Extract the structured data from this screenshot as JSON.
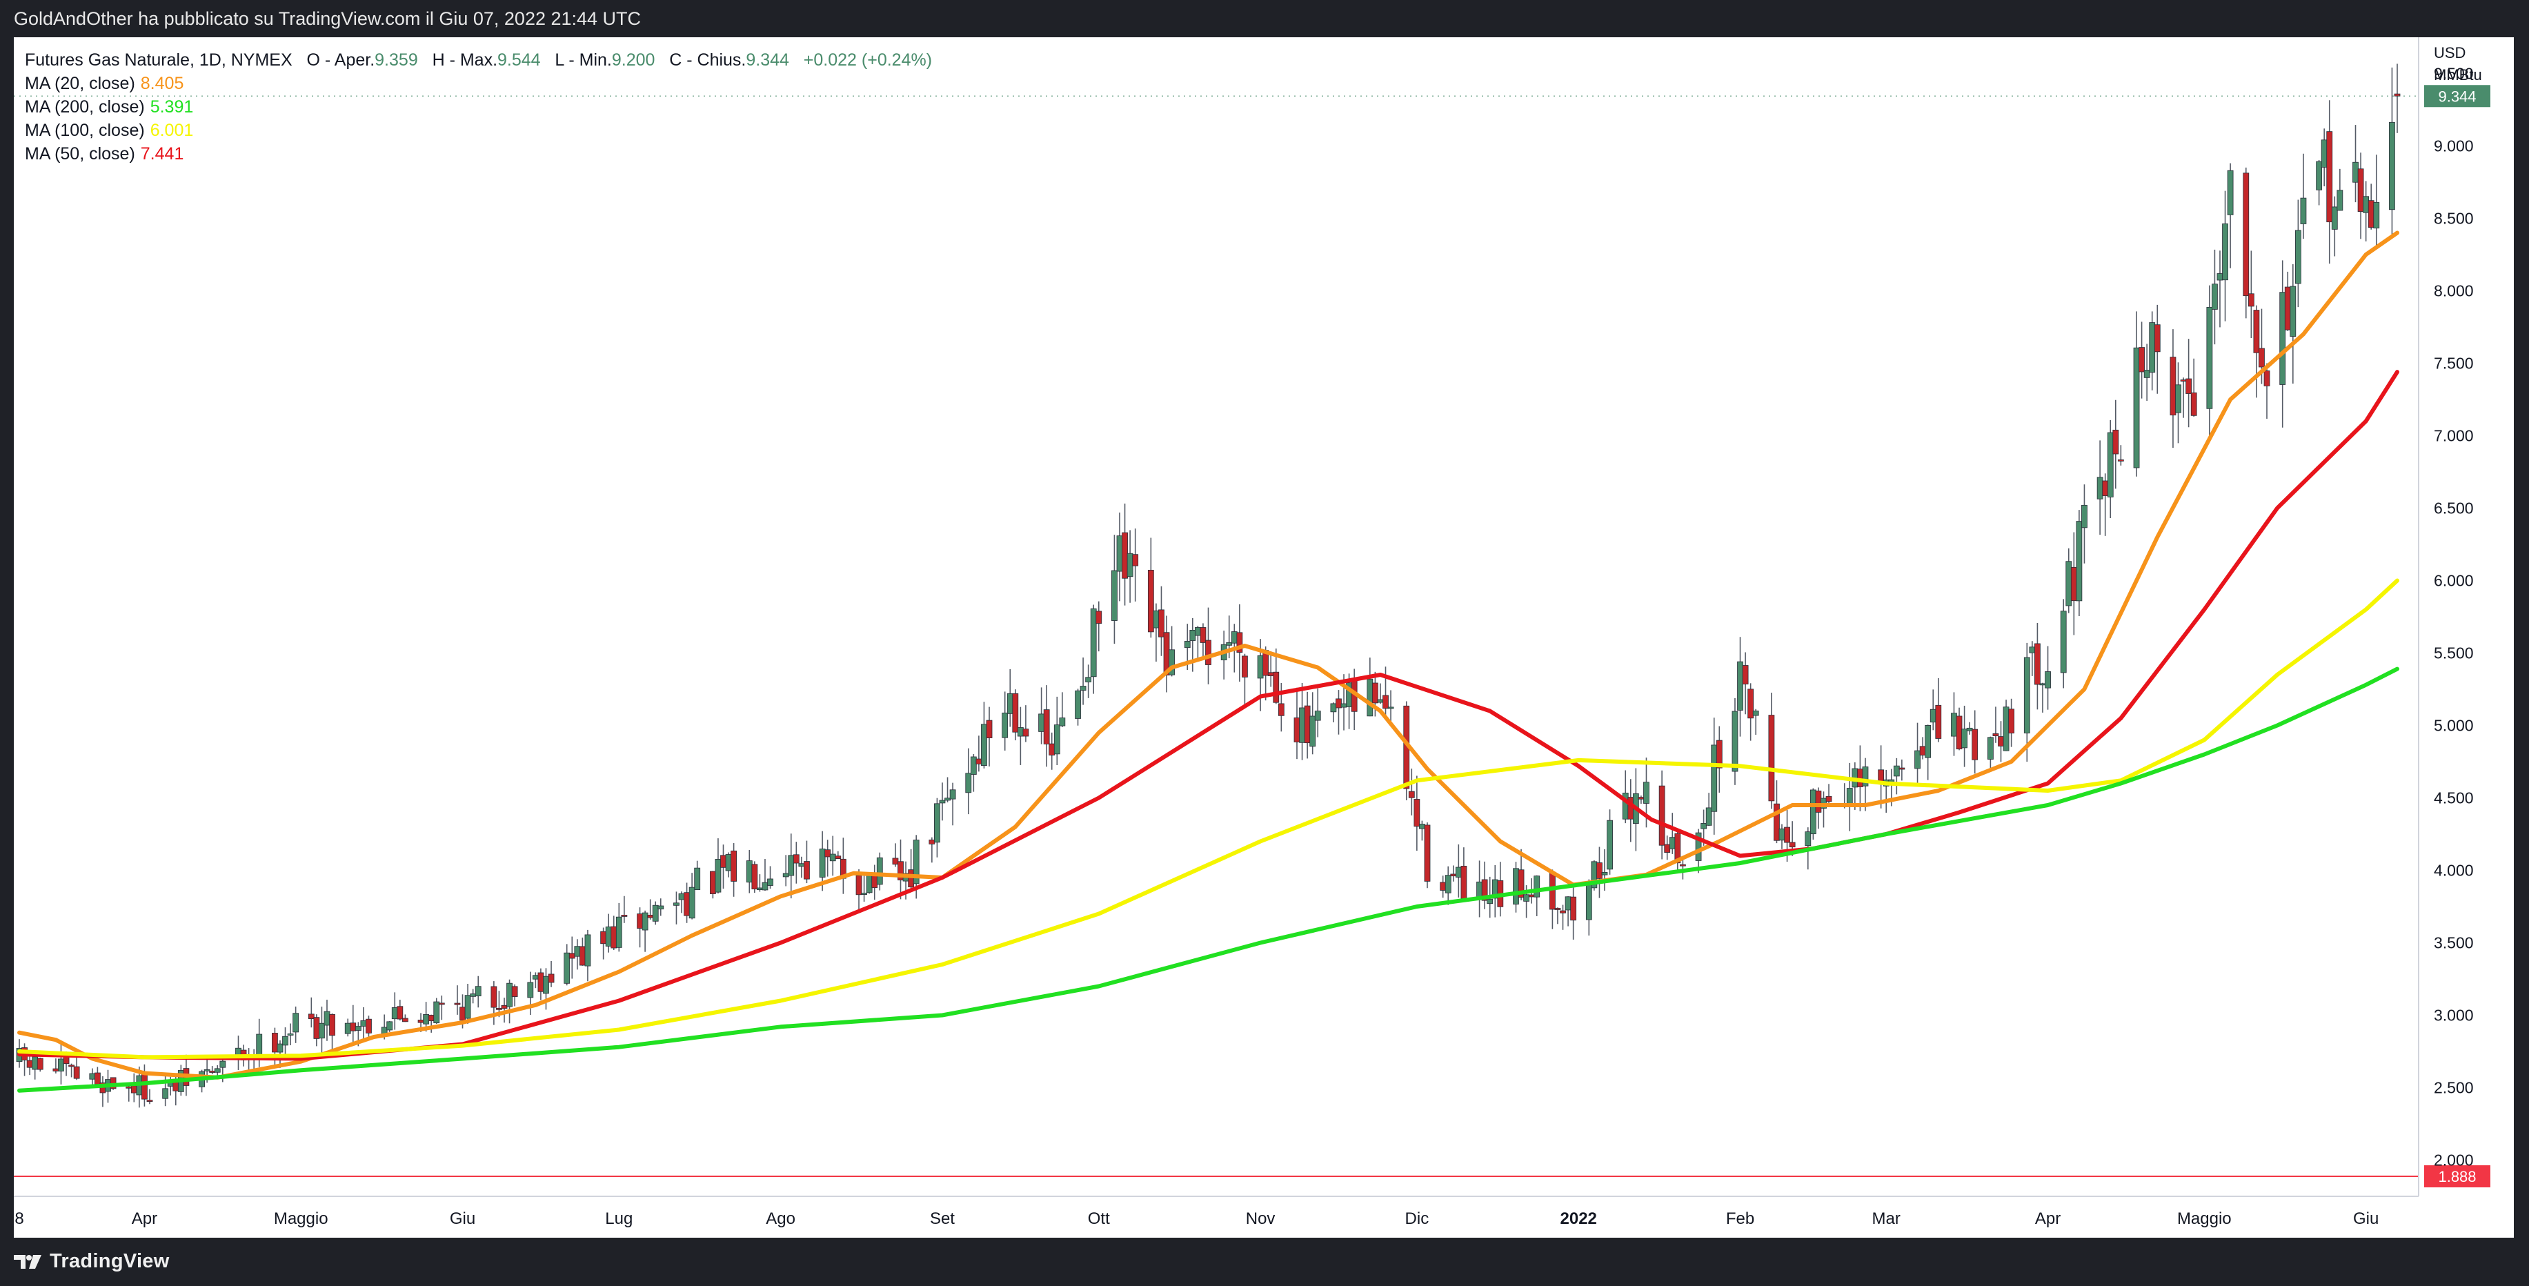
{
  "publisher_line": "GoldAndOther ha pubblicato su TradingView.com il Giu 07, 2022 21:44 UTC",
  "footer_brand": "TradingView",
  "symbol_line": {
    "name": "Futures Gas Naturale, 1D, NYMEX",
    "o_label": "O - Aper.",
    "o_value": "9.359",
    "h_label": "H - Max.",
    "h_value": "9.544",
    "l_label": "L - Min.",
    "l_value": "9.200",
    "c_label": "C - Chius.",
    "c_value": "9.344",
    "change": "+0.022 (+0.24%)"
  },
  "indicators": [
    {
      "label": "MA (20, close)",
      "value": "8.405",
      "color": "#f7931a"
    },
    {
      "label": "MA (200, close)",
      "value": "5.391",
      "color": "#21e021"
    },
    {
      "label": "MA (100, close)",
      "value": "6.001",
      "color": "#f5f500"
    },
    {
      "label": "MA (50, close)",
      "value": "7.441",
      "color": "#e8141b"
    }
  ],
  "colors": {
    "up": "#4a8c6c",
    "down": "#c4272a",
    "last_price": "#4a8c6c",
    "level_line": "#f23645"
  },
  "chart_data": {
    "type": "candlestick",
    "currency": "USD",
    "unit": "MMBtu",
    "ylim": [
      1.75,
      9.75
    ],
    "y_ticks": [
      "2.000",
      "2.500",
      "3.000",
      "3.500",
      "4.000",
      "4.500",
      "5.000",
      "5.500",
      "6.000",
      "6.500",
      "7.000",
      "7.500",
      "8.000",
      "8.500",
      "9.000",
      "9.500"
    ],
    "x_labels": [
      {
        "text": "8",
        "date": "2021-03-08"
      },
      {
        "text": "Apr",
        "date": "2021-04-01"
      },
      {
        "text": "Maggio",
        "date": "2021-05-01"
      },
      {
        "text": "Giu",
        "date": "2021-06-01"
      },
      {
        "text": "Lug",
        "date": "2021-07-01"
      },
      {
        "text": "Ago",
        "date": "2021-08-01"
      },
      {
        "text": "Set",
        "date": "2021-09-01"
      },
      {
        "text": "Ott",
        "date": "2021-10-01"
      },
      {
        "text": "Nov",
        "date": "2021-11-01"
      },
      {
        "text": "Dic",
        "date": "2021-12-01"
      },
      {
        "text": "2022",
        "date": "2022-01-01",
        "bold": true
      },
      {
        "text": "Feb",
        "date": "2022-02-01"
      },
      {
        "text": "Mar",
        "date": "2022-03-01"
      },
      {
        "text": "Apr",
        "date": "2022-04-01"
      },
      {
        "text": "Maggio",
        "date": "2022-05-01"
      },
      {
        "text": "Giu",
        "date": "2022-06-01"
      }
    ],
    "date_range": [
      "2021-03-08",
      "2022-06-07"
    ],
    "last_price": "9.344",
    "horizontal_level": {
      "value": 1.888,
      "label": "1.888"
    },
    "close_anchors": [
      [
        "2021-03-08",
        2.68
      ],
      [
        "2021-03-22",
        2.55
      ],
      [
        "2021-04-05",
        2.48
      ],
      [
        "2021-04-15",
        2.63
      ],
      [
        "2021-04-30",
        2.93
      ],
      [
        "2021-05-14",
        2.96
      ],
      [
        "2021-05-28",
        3.05
      ],
      [
        "2021-06-08",
        3.13
      ],
      [
        "2021-06-25",
        3.45
      ],
      [
        "2021-07-06",
        3.68
      ],
      [
        "2021-07-20",
        3.95
      ],
      [
        "2021-08-04",
        4.1
      ],
      [
        "2021-08-16",
        3.95
      ],
      [
        "2021-08-25",
        3.92
      ],
      [
        "2021-09-03",
        4.55
      ],
      [
        "2021-09-14",
        5.2
      ],
      [
        "2021-09-22",
        4.8
      ],
      [
        "2021-10-05",
        6.1
      ],
      [
        "2021-10-15",
        5.4
      ],
      [
        "2021-10-25",
        5.6
      ],
      [
        "2021-11-01",
        5.5
      ],
      [
        "2021-11-10",
        4.9
      ],
      [
        "2021-11-24",
        5.25
      ],
      [
        "2021-12-03",
        4.05
      ],
      [
        "2021-12-14",
        3.75
      ],
      [
        "2021-12-24",
        3.95
      ],
      [
        "2021-12-31",
        3.7
      ],
      [
        "2022-01-13",
        4.6
      ],
      [
        "2022-01-21",
        3.98
      ],
      [
        "2022-02-02",
        5.4
      ],
      [
        "2022-02-09",
        4.2
      ],
      [
        "2022-02-18",
        4.55
      ],
      [
        "2022-03-01",
        4.55
      ],
      [
        "2022-03-08",
        4.95
      ],
      [
        "2022-03-21",
        4.9
      ],
      [
        "2022-04-01",
        5.55
      ],
      [
        "2022-04-13",
        6.8
      ],
      [
        "2022-04-19",
        7.6
      ],
      [
        "2022-04-29",
        7.25
      ],
      [
        "2022-05-06",
        8.8
      ],
      [
        "2022-05-13",
        7.5
      ],
      [
        "2022-05-24",
        8.8
      ],
      [
        "2022-06-01",
        8.5
      ],
      [
        "2022-06-07",
        9.34
      ]
    ],
    "series": [
      {
        "name": "MA (20, close)",
        "color": "#f7931a",
        "points": [
          [
            "2021-03-08",
            2.88
          ],
          [
            "2021-03-15",
            2.83
          ],
          [
            "2021-03-22",
            2.7
          ],
          [
            "2021-04-01",
            2.6
          ],
          [
            "2021-04-15",
            2.57
          ],
          [
            "2021-05-01",
            2.68
          ],
          [
            "2021-05-15",
            2.85
          ],
          [
            "2021-06-01",
            2.95
          ],
          [
            "2021-06-15",
            3.07
          ],
          [
            "2021-07-01",
            3.3
          ],
          [
            "2021-07-15",
            3.55
          ],
          [
            "2021-08-01",
            3.82
          ],
          [
            "2021-08-15",
            3.98
          ],
          [
            "2021-09-01",
            3.95
          ],
          [
            "2021-09-15",
            4.3
          ],
          [
            "2021-10-01",
            4.95
          ],
          [
            "2021-10-15",
            5.4
          ],
          [
            "2021-10-29",
            5.55
          ],
          [
            "2021-11-12",
            5.4
          ],
          [
            "2021-11-24",
            5.1
          ],
          [
            "2021-12-03",
            4.7
          ],
          [
            "2021-12-17",
            4.2
          ],
          [
            "2021-12-31",
            3.9
          ],
          [
            "2022-01-14",
            3.97
          ],
          [
            "2022-01-28",
            4.2
          ],
          [
            "2022-02-11",
            4.45
          ],
          [
            "2022-02-25",
            4.45
          ],
          [
            "2022-03-11",
            4.55
          ],
          [
            "2022-03-25",
            4.75
          ],
          [
            "2022-04-08",
            5.25
          ],
          [
            "2022-04-22",
            6.3
          ],
          [
            "2022-05-06",
            7.25
          ],
          [
            "2022-05-20",
            7.7
          ],
          [
            "2022-06-01",
            8.25
          ],
          [
            "2022-06-07",
            8.4
          ]
        ]
      },
      {
        "name": "MA (50, close)",
        "color": "#e8141b",
        "points": [
          [
            "2021-03-08",
            2.73
          ],
          [
            "2021-04-01",
            2.71
          ],
          [
            "2021-05-01",
            2.7
          ],
          [
            "2021-06-01",
            2.8
          ],
          [
            "2021-07-01",
            3.1
          ],
          [
            "2021-08-01",
            3.5
          ],
          [
            "2021-09-01",
            3.95
          ],
          [
            "2021-10-01",
            4.5
          ],
          [
            "2021-11-01",
            5.2
          ],
          [
            "2021-11-24",
            5.35
          ],
          [
            "2021-12-15",
            5.1
          ],
          [
            "2022-01-01",
            4.72
          ],
          [
            "2022-01-15",
            4.35
          ],
          [
            "2022-02-01",
            4.1
          ],
          [
            "2022-02-15",
            4.15
          ],
          [
            "2022-03-01",
            4.25
          ],
          [
            "2022-03-15",
            4.4
          ],
          [
            "2022-04-01",
            4.6
          ],
          [
            "2022-04-15",
            5.05
          ],
          [
            "2022-05-01",
            5.8
          ],
          [
            "2022-05-15",
            6.5
          ],
          [
            "2022-06-01",
            7.1
          ],
          [
            "2022-06-07",
            7.44
          ]
        ]
      },
      {
        "name": "MA (100, close)",
        "color": "#f5f500",
        "points": [
          [
            "2021-03-08",
            2.75
          ],
          [
            "2021-04-01",
            2.71
          ],
          [
            "2021-05-01",
            2.72
          ],
          [
            "2021-06-01",
            2.79
          ],
          [
            "2021-07-01",
            2.9
          ],
          [
            "2021-08-01",
            3.1
          ],
          [
            "2021-09-01",
            3.35
          ],
          [
            "2021-10-01",
            3.7
          ],
          [
            "2021-11-01",
            4.2
          ],
          [
            "2021-12-01",
            4.62
          ],
          [
            "2022-01-01",
            4.76
          ],
          [
            "2022-02-01",
            4.72
          ],
          [
            "2022-03-01",
            4.6
          ],
          [
            "2022-04-01",
            4.55
          ],
          [
            "2022-04-15",
            4.62
          ],
          [
            "2022-05-01",
            4.9
          ],
          [
            "2022-05-15",
            5.35
          ],
          [
            "2022-06-01",
            5.8
          ],
          [
            "2022-06-07",
            6.0
          ]
        ]
      },
      {
        "name": "MA (200, close)",
        "color": "#21e021",
        "points": [
          [
            "2021-03-08",
            2.48
          ],
          [
            "2021-04-01",
            2.53
          ],
          [
            "2021-05-01",
            2.62
          ],
          [
            "2021-06-01",
            2.7
          ],
          [
            "2021-07-01",
            2.78
          ],
          [
            "2021-08-01",
            2.92
          ],
          [
            "2021-09-01",
            3.0
          ],
          [
            "2021-10-01",
            3.2
          ],
          [
            "2021-11-01",
            3.5
          ],
          [
            "2021-12-01",
            3.75
          ],
          [
            "2022-01-01",
            3.9
          ],
          [
            "2022-02-01",
            4.05
          ],
          [
            "2022-03-01",
            4.25
          ],
          [
            "2022-04-01",
            4.45
          ],
          [
            "2022-04-15",
            4.6
          ],
          [
            "2022-05-01",
            4.8
          ],
          [
            "2022-05-15",
            5.0
          ],
          [
            "2022-06-01",
            5.28
          ],
          [
            "2022-06-07",
            5.39
          ]
        ]
      }
    ]
  }
}
